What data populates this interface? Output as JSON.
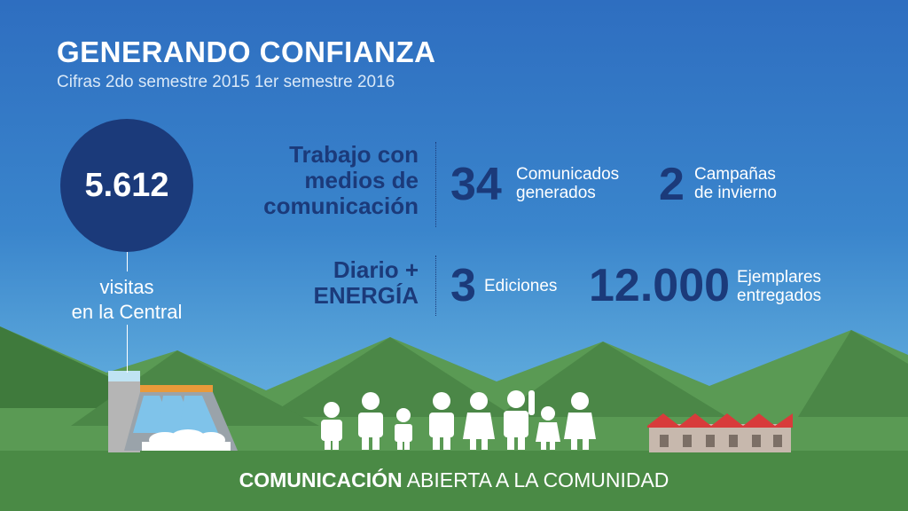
{
  "header": {
    "title": "GENERANDO CONFIANZA",
    "subtitle": "Cifras 2do semestre 2015 1er semestre 2016"
  },
  "visits": {
    "value": "5.612",
    "label_line1": "visitas",
    "label_line2": "en la Central"
  },
  "media_work": {
    "label_line1": "Trabajo con",
    "label_line2": "medios de",
    "label_line3": "comunicación",
    "stat1_value": "34",
    "stat1_line1": "Comunicados",
    "stat1_line2": "generados",
    "stat2_value": "2",
    "stat2_line1": "Campañas",
    "stat2_line2": "de invierno"
  },
  "newspaper": {
    "label_line1": "Diario +",
    "label_line2": "ENERGÍA",
    "stat1_value": "3",
    "stat1_label": "Ediciones",
    "stat2_value": "12.000",
    "stat2_line1": "Ejemplares",
    "stat2_line2": "entregados"
  },
  "footer": {
    "bold_text": "COMUNICACIÓN",
    "rest_text": "ABIERTA A LA COMUNIDAD"
  },
  "colors": {
    "sky_top": "#2e6ec0",
    "navy": "#1b3a7a",
    "mountain_green": "#4e8a4a",
    "ground_green": "#4a8a45"
  },
  "icons": [
    "hydroelectric-dam-icon",
    "people-group-icon",
    "building-red-roof-icon"
  ]
}
